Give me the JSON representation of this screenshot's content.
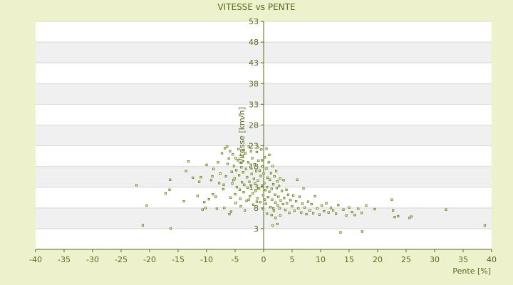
{
  "chart_data": {
    "type": "scatter",
    "title": "VITESSE vs PENTE",
    "xlabel": "Pente [%]",
    "ylabel": "Vitesse [km/h]",
    "xlim": [
      -40,
      40
    ],
    "ylim": [
      -2,
      53
    ],
    "xticks": [
      -40,
      -35,
      -30,
      -25,
      -20,
      -15,
      -10,
      -5,
      0,
      5,
      10,
      15,
      20,
      25,
      30,
      35,
      40
    ],
    "xtick_labels": [
      "-40",
      "-35",
      "-30",
      "-25",
      "-20",
      "-15",
      "-10",
      "-5",
      "0",
      "5",
      "10",
      "15",
      "20",
      "25",
      "30",
      "35",
      "40"
    ],
    "yticks": [
      3,
      8,
      13,
      18,
      23,
      28,
      33,
      38,
      43,
      48,
      53
    ],
    "ytick_labels": [
      "3",
      "8",
      "13",
      "18",
      "23",
      "28",
      "33",
      "38",
      "43",
      "48",
      "53"
    ],
    "grid": true,
    "legend": "none",
    "colors": {
      "background": "#eef2cc",
      "plot": "#ffffff",
      "band": "#f0f0f0",
      "marker": "#5a7a10",
      "text": "#556b1a",
      "axis": "#556b1a"
    },
    "series": [
      {
        "points": [
          [
            -22.3,
            13.5
          ],
          [
            -21.2,
            3.8
          ],
          [
            -20.5,
            8.6
          ],
          [
            -17.2,
            11.5
          ],
          [
            -16.5,
            12.4
          ],
          [
            -16.4,
            14.8
          ],
          [
            -16.3,
            3.0
          ],
          [
            -14,
            9.6
          ],
          [
            -13.6,
            16.9
          ],
          [
            -13.2,
            19.2
          ],
          [
            -12.4,
            15.3
          ],
          [
            -11.6,
            10.9
          ],
          [
            -11.3,
            14.3
          ],
          [
            -11.0,
            15.4
          ],
          [
            -10.7,
            7.6
          ],
          [
            -10.4,
            9.4
          ],
          [
            -10.2,
            8.0
          ],
          [
            -10.0,
            18.4
          ],
          [
            -9.6,
            10.1
          ],
          [
            -9.2,
            14.7
          ],
          [
            -9.0,
            15.6
          ],
          [
            -8.9,
            11.3
          ],
          [
            -8.8,
            17.4
          ],
          [
            -8.4,
            10.7
          ],
          [
            -8.2,
            7.8
          ],
          [
            -8.0,
            19.0
          ],
          [
            -7.8,
            14.0
          ],
          [
            -7.6,
            16.3
          ],
          [
            -7.3,
            21.2
          ],
          [
            -7.1,
            12.5
          ],
          [
            -7.0,
            13.6
          ],
          [
            -6.9,
            8.0
          ],
          [
            -6.6,
            15.6
          ],
          [
            -6.4,
            22.8
          ],
          [
            -6.3,
            18.6
          ],
          [
            -6.1,
            19.9
          ],
          [
            -6.0,
            6.5
          ],
          [
            -5.9,
            21.7
          ],
          [
            -5.8,
            10.5
          ],
          [
            -5.7,
            7.1
          ],
          [
            -5.6,
            16.7
          ],
          [
            -5.5,
            13.9
          ],
          [
            -5.4,
            20.9
          ],
          [
            -5.2,
            18.1
          ],
          [
            -5.1,
            15.1
          ],
          [
            -5.0,
            11.3
          ],
          [
            -4.9,
            9.2
          ],
          [
            -4.8,
            17.1
          ],
          [
            -4.7,
            13.0
          ],
          [
            -4.5,
            19.5
          ],
          [
            -4.4,
            22.2
          ],
          [
            -4.3,
            15.9
          ],
          [
            -4.2,
            12.4
          ],
          [
            -4.1,
            10.2
          ],
          [
            -4.0,
            8.4
          ],
          [
            -3.9,
            18.9
          ],
          [
            -3.8,
            14.2
          ],
          [
            -3.7,
            20.5
          ],
          [
            -3.6,
            16.6
          ],
          [
            -3.5,
            11.8
          ],
          [
            -3.4,
            13.6
          ],
          [
            -3.3,
            7.4
          ],
          [
            -3.2,
            21.2
          ],
          [
            -3.1,
            17.4
          ],
          [
            -3.0,
            9.7
          ],
          [
            -2.9,
            15.4
          ],
          [
            -2.8,
            12.9
          ],
          [
            -2.7,
            19.0
          ],
          [
            -2.6,
            22.8
          ],
          [
            -2.5,
            14.3
          ],
          [
            -2.4,
            10.8
          ],
          [
            -2.3,
            17.9
          ],
          [
            -2.2,
            13.2
          ],
          [
            -2.1,
            16.2
          ],
          [
            -2.0,
            20.0
          ],
          [
            -1.9,
            11.5
          ],
          [
            -1.8,
            8.8
          ],
          [
            -1.7,
            15.0
          ],
          [
            -1.6,
            18.5
          ],
          [
            -1.5,
            13.9
          ],
          [
            -1.4,
            12.1
          ],
          [
            -1.3,
            16.9
          ],
          [
            -1.2,
            21.5
          ],
          [
            -1.1,
            10.3
          ],
          [
            -1.0,
            14.6
          ],
          [
            -0.9,
            19.4
          ],
          [
            -0.8,
            12.7
          ],
          [
            -0.7,
            17.0
          ],
          [
            -0.6,
            9.4
          ],
          [
            -0.5,
            15.7
          ],
          [
            -0.4,
            22.1
          ],
          [
            -0.3,
            13.4
          ],
          [
            -0.2,
            18.0
          ],
          [
            -0.1,
            11.1
          ],
          [
            0.0,
            16.3
          ],
          [
            0.1,
            14.0
          ],
          [
            0.2,
            20.2
          ],
          [
            0.3,
            12.3
          ],
          [
            0.4,
            9.0
          ],
          [
            0.5,
            17.5
          ],
          [
            0.6,
            13.0
          ],
          [
            0.7,
            15.3
          ],
          [
            0.8,
            10.6
          ],
          [
            0.9,
            19.0
          ],
          [
            1.0,
            11.9
          ],
          [
            1.1,
            14.8
          ],
          [
            1.2,
            8.2
          ],
          [
            1.3,
            16.4
          ],
          [
            1.4,
            12.6
          ],
          [
            1.5,
            10.0
          ],
          [
            1.6,
            18.1
          ],
          [
            1.7,
            13.7
          ],
          [
            1.8,
            7.3
          ],
          [
            1.9,
            15.6
          ],
          [
            2.0,
            11.2
          ],
          [
            2.1,
            9.3
          ],
          [
            2.2,
            16.9
          ],
          [
            2.3,
            12.8
          ],
          [
            2.4,
            14.4
          ],
          [
            2.5,
            8.6
          ],
          [
            2.6,
            10.7
          ],
          [
            2.7,
            13.3
          ],
          [
            2.8,
            7.9
          ],
          [
            2.9,
            15.1
          ],
          [
            3.0,
            9.8
          ],
          [
            3.2,
            12.1
          ],
          [
            3.4,
            8.9
          ],
          [
            3.5,
            14.7
          ],
          [
            3.6,
            10.4
          ],
          [
            3.8,
            7.5
          ],
          [
            4.0,
            12.4
          ],
          [
            4.1,
            9.1
          ],
          [
            4.3,
            11.2
          ],
          [
            4.5,
            6.8
          ],
          [
            4.7,
            9.9
          ],
          [
            5.0,
            8.4
          ],
          [
            5.2,
            11.0
          ],
          [
            5.4,
            7.3
          ],
          [
            5.7,
            9.6
          ],
          [
            5.9,
            14.8
          ],
          [
            6.1,
            7.9
          ],
          [
            6.3,
            10.7
          ],
          [
            6.6,
            6.9
          ],
          [
            6.8,
            9.0
          ],
          [
            7.0,
            12.7
          ],
          [
            7.2,
            8.1
          ],
          [
            7.5,
            6.5
          ],
          [
            7.8,
            9.5
          ],
          [
            8.1,
            7.4
          ],
          [
            8.4,
            8.9
          ],
          [
            8.7,
            6.7
          ],
          [
            9.0,
            10.8
          ],
          [
            9.4,
            7.9
          ],
          [
            9.8,
            6.4
          ],
          [
            10.2,
            8.6
          ],
          [
            10.6,
            7.2
          ],
          [
            11.0,
            9.1
          ],
          [
            11.4,
            6.9
          ],
          [
            11.8,
            8.0
          ],
          [
            12.2,
            7.4
          ],
          [
            12.7,
            6.6
          ],
          [
            13.1,
            8.7
          ],
          [
            13.5,
            2.1
          ],
          [
            14.0,
            7.6
          ],
          [
            14.5,
            6.2
          ],
          [
            15.0,
            8.1
          ],
          [
            15.5,
            7.0
          ],
          [
            16.0,
            6.3
          ],
          [
            16.6,
            7.8
          ],
          [
            17.2,
            6.8
          ],
          [
            17.3,
            2.3
          ],
          [
            18.0,
            8.6
          ],
          [
            19.5,
            7.7
          ],
          [
            22.5,
            10.0
          ],
          [
            22.7,
            7.4
          ],
          [
            23.0,
            5.8
          ],
          [
            23.6,
            6.0
          ],
          [
            25.6,
            5.6
          ],
          [
            25.9,
            5.9
          ],
          [
            32.0,
            7.6
          ],
          [
            38.8,
            3.8
          ],
          [
            -6.8,
            22.4
          ],
          [
            -4.9,
            20.0
          ],
          [
            -3.5,
            22.0
          ],
          [
            -2.2,
            21.7
          ],
          [
            -1.0,
            22.6
          ],
          [
            0.5,
            22.3
          ],
          [
            1.0,
            20.8
          ],
          [
            -0.3,
            19.5
          ],
          [
            -3.9,
            17.8
          ],
          [
            -5.3,
            14.7
          ],
          [
            -2.6,
            10.0
          ],
          [
            -1.2,
            9.5
          ],
          [
            0.2,
            10.0
          ],
          [
            1.4,
            6.3
          ],
          [
            2.1,
            5.6
          ],
          [
            2.4,
            4.1
          ],
          [
            1.6,
            3.8
          ],
          [
            0.6,
            6.6
          ],
          [
            -0.1,
            7.7
          ],
          [
            1.7,
            7.9
          ],
          [
            2.9,
            6.2
          ]
        ]
      }
    ]
  }
}
